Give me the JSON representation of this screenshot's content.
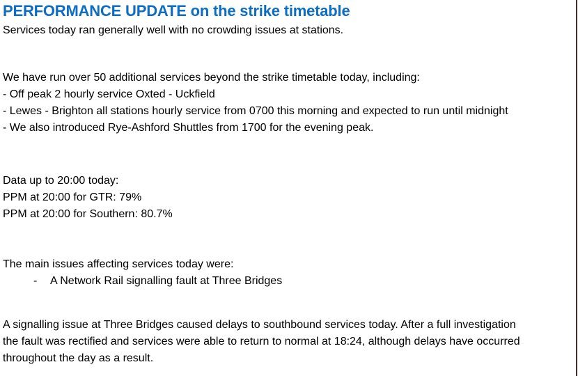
{
  "page": {
    "background": "#ffffff",
    "accent_blue": "#0d6cc4",
    "edge_line_color": "#4d2b2b"
  },
  "document": {
    "title": "PERFORMANCE UPDATE on the strike timetable",
    "intro": "Services today ran generally well with no crowding issues at stations.",
    "additional_services": {
      "lead": "We have run over 50 additional services beyond the strike timetable today, including:",
      "items": [
        "- Off peak 2 hourly service Oxted - Uckfield",
        "- Lewes - Brighton all stations hourly service from 0700 this morning and expected to run until midnight",
        "- We also introduced Rye-Ashford Shuttles from 1700 for the evening peak."
      ]
    },
    "ppm": {
      "lines": [
        "Data up to 20:00 today:",
        "PPM at 20:00 for GTR: 79%",
        "PPM at 20:00 for Southern: 80.7%"
      ]
    },
    "issues": {
      "lead": "The main issues affecting services today were:",
      "bullet_marker": "-",
      "items": [
        "A Network Rail signalling fault at Three Bridges"
      ]
    },
    "closing": {
      "lines": [
        "A signalling issue at Three Bridges caused delays to southbound services today. After a full investigation",
        "the fault was rectified and services were able to return to normal at 18:24, although delays have occurred",
        "throughout the day as a result."
      ]
    }
  }
}
